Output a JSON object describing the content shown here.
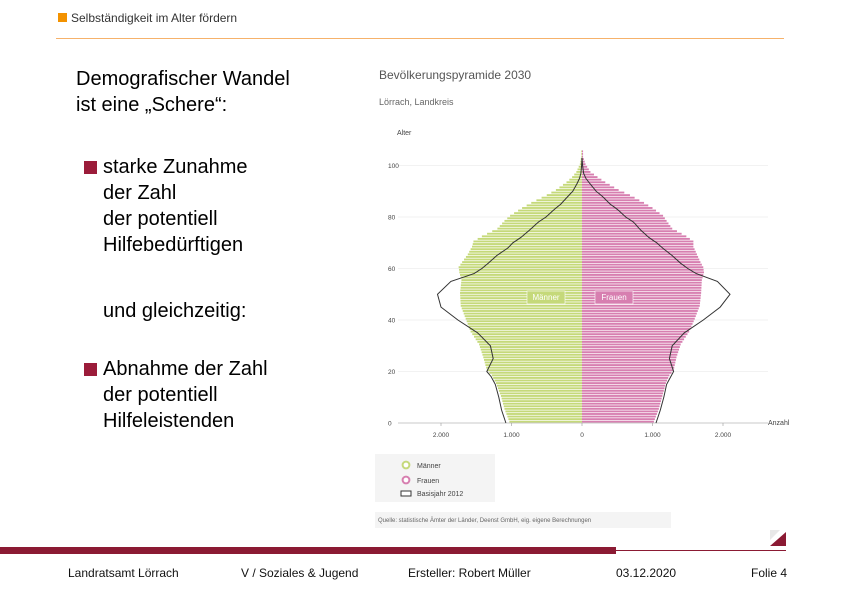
{
  "header": {
    "title": "Selbständigkeit im Alter fördern"
  },
  "slide": {
    "heading_line1": "Demografischer Wandel",
    "heading_line2": "ist eine „Schere“:",
    "bullet1": "starke Zunahme\nder Zahl\nder potentiell\nHilfebedürftigen",
    "connector": "und gleichzeitig:",
    "bullet2": "Abnahme der Zahl\nder potentiell\nHilfeleistenden"
  },
  "chart_data": {
    "type": "population-pyramid",
    "title": "Bevölkerungspyramide 2030",
    "subtitle": "Lörrach, Landkreis",
    "ylabel": "Alter",
    "xlabel": "Anzahl",
    "y_ticks": [
      0,
      20,
      40,
      60,
      80,
      100
    ],
    "x_ticks": [
      "2.000",
      "1.000",
      "0",
      "1.000",
      "2.000"
    ],
    "xlim": [
      -2400,
      2400
    ],
    "ylim": [
      0,
      105
    ],
    "series": [
      {
        "name": "Männer",
        "color": "#c5d97a"
      },
      {
        "name": "Frauen",
        "color": "#d77fb0"
      },
      {
        "name": "Basisjahr 2012",
        "color": "#333333"
      }
    ],
    "bar_label_left": "Männer",
    "bar_label_right": "Frauen",
    "legend": [
      "Männer",
      "Frauen",
      "Basisjahr 2012"
    ],
    "source": "Quelle: statistische Ämter der Länder, Deenst GmbH, eig. eigene Berechnungen",
    "ages": [
      0,
      5,
      10,
      15,
      18,
      20,
      25,
      30,
      35,
      40,
      45,
      50,
      55,
      58,
      60,
      62,
      65,
      68,
      70,
      72,
      75,
      78,
      80,
      83,
      85,
      88,
      90,
      93,
      95,
      97,
      100,
      103
    ],
    "men_2030": [
      1030,
      1100,
      1150,
      1220,
      1280,
      1350,
      1400,
      1460,
      1580,
      1650,
      1720,
      1730,
      1710,
      1740,
      1750,
      1700,
      1620,
      1560,
      1540,
      1420,
      1200,
      1100,
      1020,
      850,
      720,
      500,
      370,
      220,
      140,
      80,
      30,
      10
    ],
    "women_2030": [
      1020,
      1090,
      1140,
      1190,
      1240,
      1300,
      1340,
      1400,
      1520,
      1600,
      1670,
      1690,
      1700,
      1730,
      1720,
      1680,
      1630,
      1580,
      1580,
      1480,
      1280,
      1200,
      1150,
      1000,
      880,
      680,
      520,
      330,
      220,
      120,
      50,
      15
    ],
    "men_2012": [
      1080,
      1140,
      1180,
      1230,
      1290,
      1350,
      1260,
      1300,
      1480,
      1760,
      2000,
      2050,
      1860,
      1530,
      1420,
      1330,
      1210,
      1050,
      980,
      870,
      740,
      620,
      510,
      390,
      300,
      200,
      130,
      70,
      35,
      15,
      6,
      0
    ],
    "women_2012": [
      1050,
      1110,
      1160,
      1200,
      1260,
      1300,
      1240,
      1280,
      1450,
      1720,
      1960,
      2100,
      1920,
      1620,
      1500,
      1400,
      1280,
      1140,
      1060,
      950,
      830,
      730,
      620,
      500,
      400,
      290,
      200,
      110,
      55,
      22,
      8,
      0
    ]
  },
  "footer": {
    "org": "Landratsamt Lörrach",
    "dept": "V / Soziales & Jugend",
    "author": "Ersteller: Robert Müller",
    "date": "03.12.2020",
    "slide": "Folie 4"
  }
}
